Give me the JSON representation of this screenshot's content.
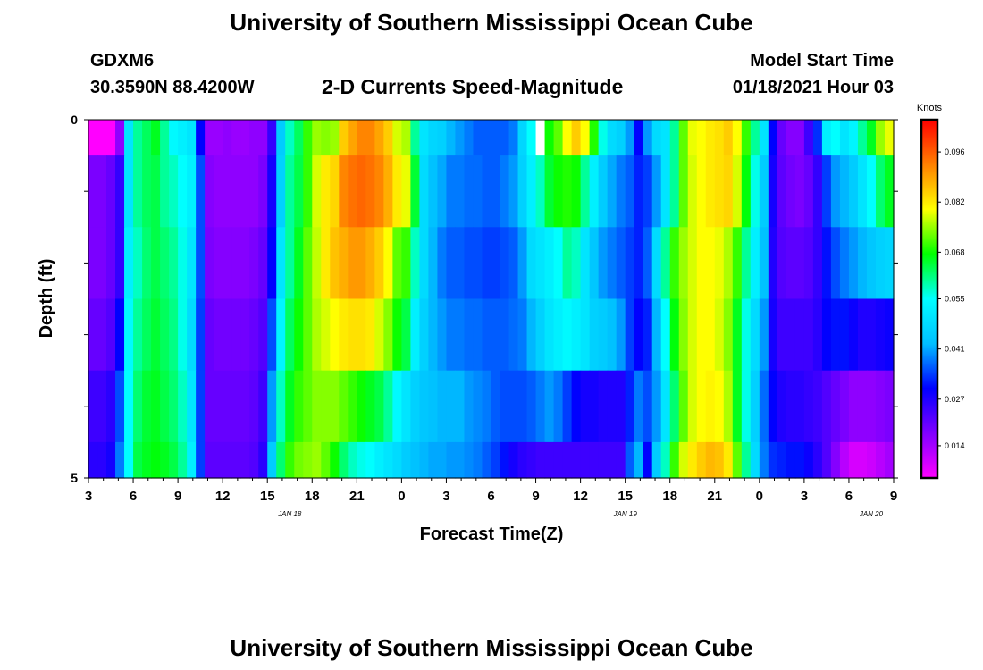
{
  "header": {
    "title": "University of Southern Mississippi Ocean Cube",
    "station_id": "GDXM6",
    "station_location": "30.3590N 88.4200W",
    "chart_title": "2-D Currents Speed-Magnitude",
    "model_start_label": "Model Start Time",
    "model_start_value": "01/18/2021 Hour 03"
  },
  "footer": {
    "title": "University of Southern Mississippi Ocean Cube"
  },
  "chart_data": {
    "type": "heatmap",
    "title": "2-D Currents Speed-Magnitude",
    "xlabel": "Forecast Time(Z)",
    "ylabel": "Depth (ft)",
    "x_start_hour": 3,
    "x_hours": 54,
    "x_tick_labels": [
      "3",
      "6",
      "9",
      "12",
      "15",
      "18",
      "21",
      "0",
      "3",
      "6",
      "9",
      "12",
      "15",
      "18",
      "21",
      "0",
      "3",
      "6",
      "9"
    ],
    "date_labels": [
      {
        "label": "JAN 18",
        "at_hour": 13.5
      },
      {
        "label": "JAN 19",
        "at_hour": 36
      },
      {
        "label": "JAN 20",
        "at_hour": 52.5
      }
    ],
    "y_tick_labels": [
      "0",
      "5"
    ],
    "ylim": [
      0,
      5
    ],
    "depth_levels": 5,
    "colorbar": {
      "title": "Knots",
      "min": 0.005,
      "max": 0.105,
      "tick_labels": [
        "0.096",
        "0.082",
        "0.068",
        "0.055",
        "0.041",
        "0.027",
        "0.014"
      ],
      "colors": [
        "#ff00ff",
        "#8000ff",
        "#0000ff",
        "#00bfff",
        "#00ffff",
        "#00ff00",
        "#ffff00",
        "#ff8000",
        "#ff0000"
      ]
    },
    "rows": [
      [
        0.005,
        0.005,
        0.005,
        0.016,
        0.05,
        0.06,
        0.063,
        0.066,
        0.06,
        0.054,
        0.052,
        0.05,
        0.03,
        0.015,
        0.015,
        0.016,
        0.015,
        0.015,
        0.016,
        0.016,
        0.025,
        0.045,
        0.058,
        0.063,
        0.07,
        0.075,
        0.074,
        0.075,
        0.085,
        0.089,
        0.092,
        0.092,
        0.089,
        0.085,
        0.078,
        0.076,
        0.06,
        0.05,
        0.047,
        0.046,
        0.042,
        0.04,
        0.038,
        0.036,
        0.036,
        0.036,
        0.036,
        0.038,
        0.047,
        0.055,
        0.062,
        0.068,
        0.072,
        0.08,
        0.085,
        0.08,
        0.069,
        0.056,
        0.048,
        0.046,
        0.04,
        0.03,
        0.04,
        0.048,
        0.05,
        0.06,
        0.072,
        0.079,
        0.08,
        0.082,
        0.083,
        0.085,
        0.08,
        0.07,
        0.06,
        0.05,
        0.03,
        0.02,
        0.017,
        0.017,
        0.024,
        0.033,
        0.052,
        0.055,
        0.05,
        0.053,
        0.06,
        0.066,
        0.075,
        0.079
      ],
      [
        0.018,
        0.018,
        0.02,
        0.025,
        0.05,
        0.06,
        0.063,
        0.064,
        0.06,
        0.058,
        0.055,
        0.052,
        0.035,
        0.017,
        0.016,
        0.016,
        0.016,
        0.016,
        0.016,
        0.018,
        0.028,
        0.046,
        0.06,
        0.064,
        0.07,
        0.078,
        0.082,
        0.084,
        0.092,
        0.094,
        0.095,
        0.094,
        0.092,
        0.088,
        0.082,
        0.079,
        0.065,
        0.048,
        0.043,
        0.041,
        0.038,
        0.038,
        0.037,
        0.037,
        0.036,
        0.036,
        0.038,
        0.04,
        0.046,
        0.052,
        0.058,
        0.065,
        0.068,
        0.069,
        0.068,
        0.06,
        0.052,
        0.045,
        0.041,
        0.038,
        0.036,
        0.032,
        0.034,
        0.04,
        0.05,
        0.06,
        0.072,
        0.078,
        0.08,
        0.082,
        0.083,
        0.084,
        0.078,
        0.067,
        0.056,
        0.045,
        0.028,
        0.021,
        0.019,
        0.018,
        0.02,
        0.025,
        0.034,
        0.04,
        0.042,
        0.045,
        0.05,
        0.055,
        0.062,
        0.066
      ],
      [
        0.018,
        0.018,
        0.02,
        0.025,
        0.052,
        0.058,
        0.062,
        0.064,
        0.062,
        0.06,
        0.056,
        0.05,
        0.035,
        0.018,
        0.017,
        0.017,
        0.017,
        0.017,
        0.018,
        0.02,
        0.03,
        0.05,
        0.06,
        0.066,
        0.072,
        0.077,
        0.082,
        0.086,
        0.088,
        0.09,
        0.09,
        0.088,
        0.085,
        0.08,
        0.072,
        0.07,
        0.058,
        0.048,
        0.042,
        0.038,
        0.036,
        0.036,
        0.035,
        0.035,
        0.034,
        0.034,
        0.035,
        0.036,
        0.04,
        0.048,
        0.05,
        0.052,
        0.055,
        0.06,
        0.058,
        0.05,
        0.044,
        0.04,
        0.038,
        0.036,
        0.034,
        0.032,
        0.036,
        0.048,
        0.06,
        0.07,
        0.075,
        0.078,
        0.08,
        0.08,
        0.079,
        0.076,
        0.07,
        0.06,
        0.052,
        0.043,
        0.027,
        0.022,
        0.021,
        0.021,
        0.022,
        0.025,
        0.031,
        0.035,
        0.038,
        0.04,
        0.042,
        0.044,
        0.046,
        0.047
      ],
      [
        0.02,
        0.02,
        0.022,
        0.03,
        0.054,
        0.06,
        0.063,
        0.065,
        0.063,
        0.061,
        0.056,
        0.048,
        0.034,
        0.02,
        0.019,
        0.019,
        0.019,
        0.019,
        0.02,
        0.022,
        0.035,
        0.053,
        0.063,
        0.068,
        0.072,
        0.076,
        0.078,
        0.08,
        0.082,
        0.083,
        0.083,
        0.082,
        0.078,
        0.074,
        0.068,
        0.064,
        0.052,
        0.046,
        0.042,
        0.04,
        0.038,
        0.038,
        0.037,
        0.037,
        0.036,
        0.036,
        0.036,
        0.037,
        0.038,
        0.042,
        0.046,
        0.05,
        0.052,
        0.054,
        0.052,
        0.05,
        0.046,
        0.045,
        0.043,
        0.04,
        0.034,
        0.03,
        0.032,
        0.042,
        0.055,
        0.067,
        0.074,
        0.078,
        0.08,
        0.08,
        0.078,
        0.074,
        0.066,
        0.056,
        0.048,
        0.04,
        0.028,
        0.024,
        0.024,
        0.024,
        0.024,
        0.026,
        0.03,
        0.031,
        0.031,
        0.029,
        0.027,
        0.027,
        0.028,
        0.029
      ],
      [
        0.024,
        0.024,
        0.026,
        0.035,
        0.055,
        0.062,
        0.065,
        0.066,
        0.064,
        0.062,
        0.058,
        0.05,
        0.034,
        0.02,
        0.02,
        0.02,
        0.02,
        0.02,
        0.021,
        0.024,
        0.04,
        0.058,
        0.066,
        0.07,
        0.072,
        0.074,
        0.074,
        0.074,
        0.072,
        0.07,
        0.068,
        0.066,
        0.064,
        0.06,
        0.054,
        0.05,
        0.046,
        0.044,
        0.043,
        0.042,
        0.042,
        0.042,
        0.04,
        0.039,
        0.038,
        0.036,
        0.035,
        0.035,
        0.035,
        0.036,
        0.038,
        0.04,
        0.038,
        0.034,
        0.03,
        0.028,
        0.028,
        0.027,
        0.027,
        0.027,
        0.032,
        0.038,
        0.035,
        0.04,
        0.05,
        0.062,
        0.072,
        0.078,
        0.08,
        0.081,
        0.08,
        0.076,
        0.066,
        0.056,
        0.046,
        0.037,
        0.03,
        0.027,
        0.026,
        0.026,
        0.025,
        0.024,
        0.022,
        0.02,
        0.018,
        0.016,
        0.016,
        0.016,
        0.017,
        0.018
      ],
      [
        0.026,
        0.026,
        0.028,
        0.038,
        0.055,
        0.064,
        0.066,
        0.067,
        0.066,
        0.064,
        0.06,
        0.052,
        0.034,
        0.021,
        0.021,
        0.021,
        0.021,
        0.021,
        0.022,
        0.026,
        0.045,
        0.062,
        0.07,
        0.073,
        0.074,
        0.075,
        0.072,
        0.068,
        0.062,
        0.058,
        0.056,
        0.055,
        0.052,
        0.05,
        0.048,
        0.045,
        0.043,
        0.042,
        0.041,
        0.041,
        0.04,
        0.04,
        0.039,
        0.038,
        0.036,
        0.034,
        0.031,
        0.028,
        0.026,
        0.025,
        0.024,
        0.024,
        0.024,
        0.024,
        0.024,
        0.024,
        0.024,
        0.024,
        0.024,
        0.024,
        0.036,
        0.042,
        0.03,
        0.045,
        0.058,
        0.07,
        0.078,
        0.082,
        0.085,
        0.087,
        0.086,
        0.082,
        0.072,
        0.06,
        0.048,
        0.038,
        0.033,
        0.032,
        0.031,
        0.031,
        0.029,
        0.026,
        0.022,
        0.017,
        0.012,
        0.009,
        0.009,
        0.01,
        0.012,
        0.014
      ]
    ],
    "missing_cells": [
      {
        "row": 0,
        "col": 50
      }
    ]
  },
  "colors": {
    "background": "#ffffff",
    "text": "#000000"
  }
}
